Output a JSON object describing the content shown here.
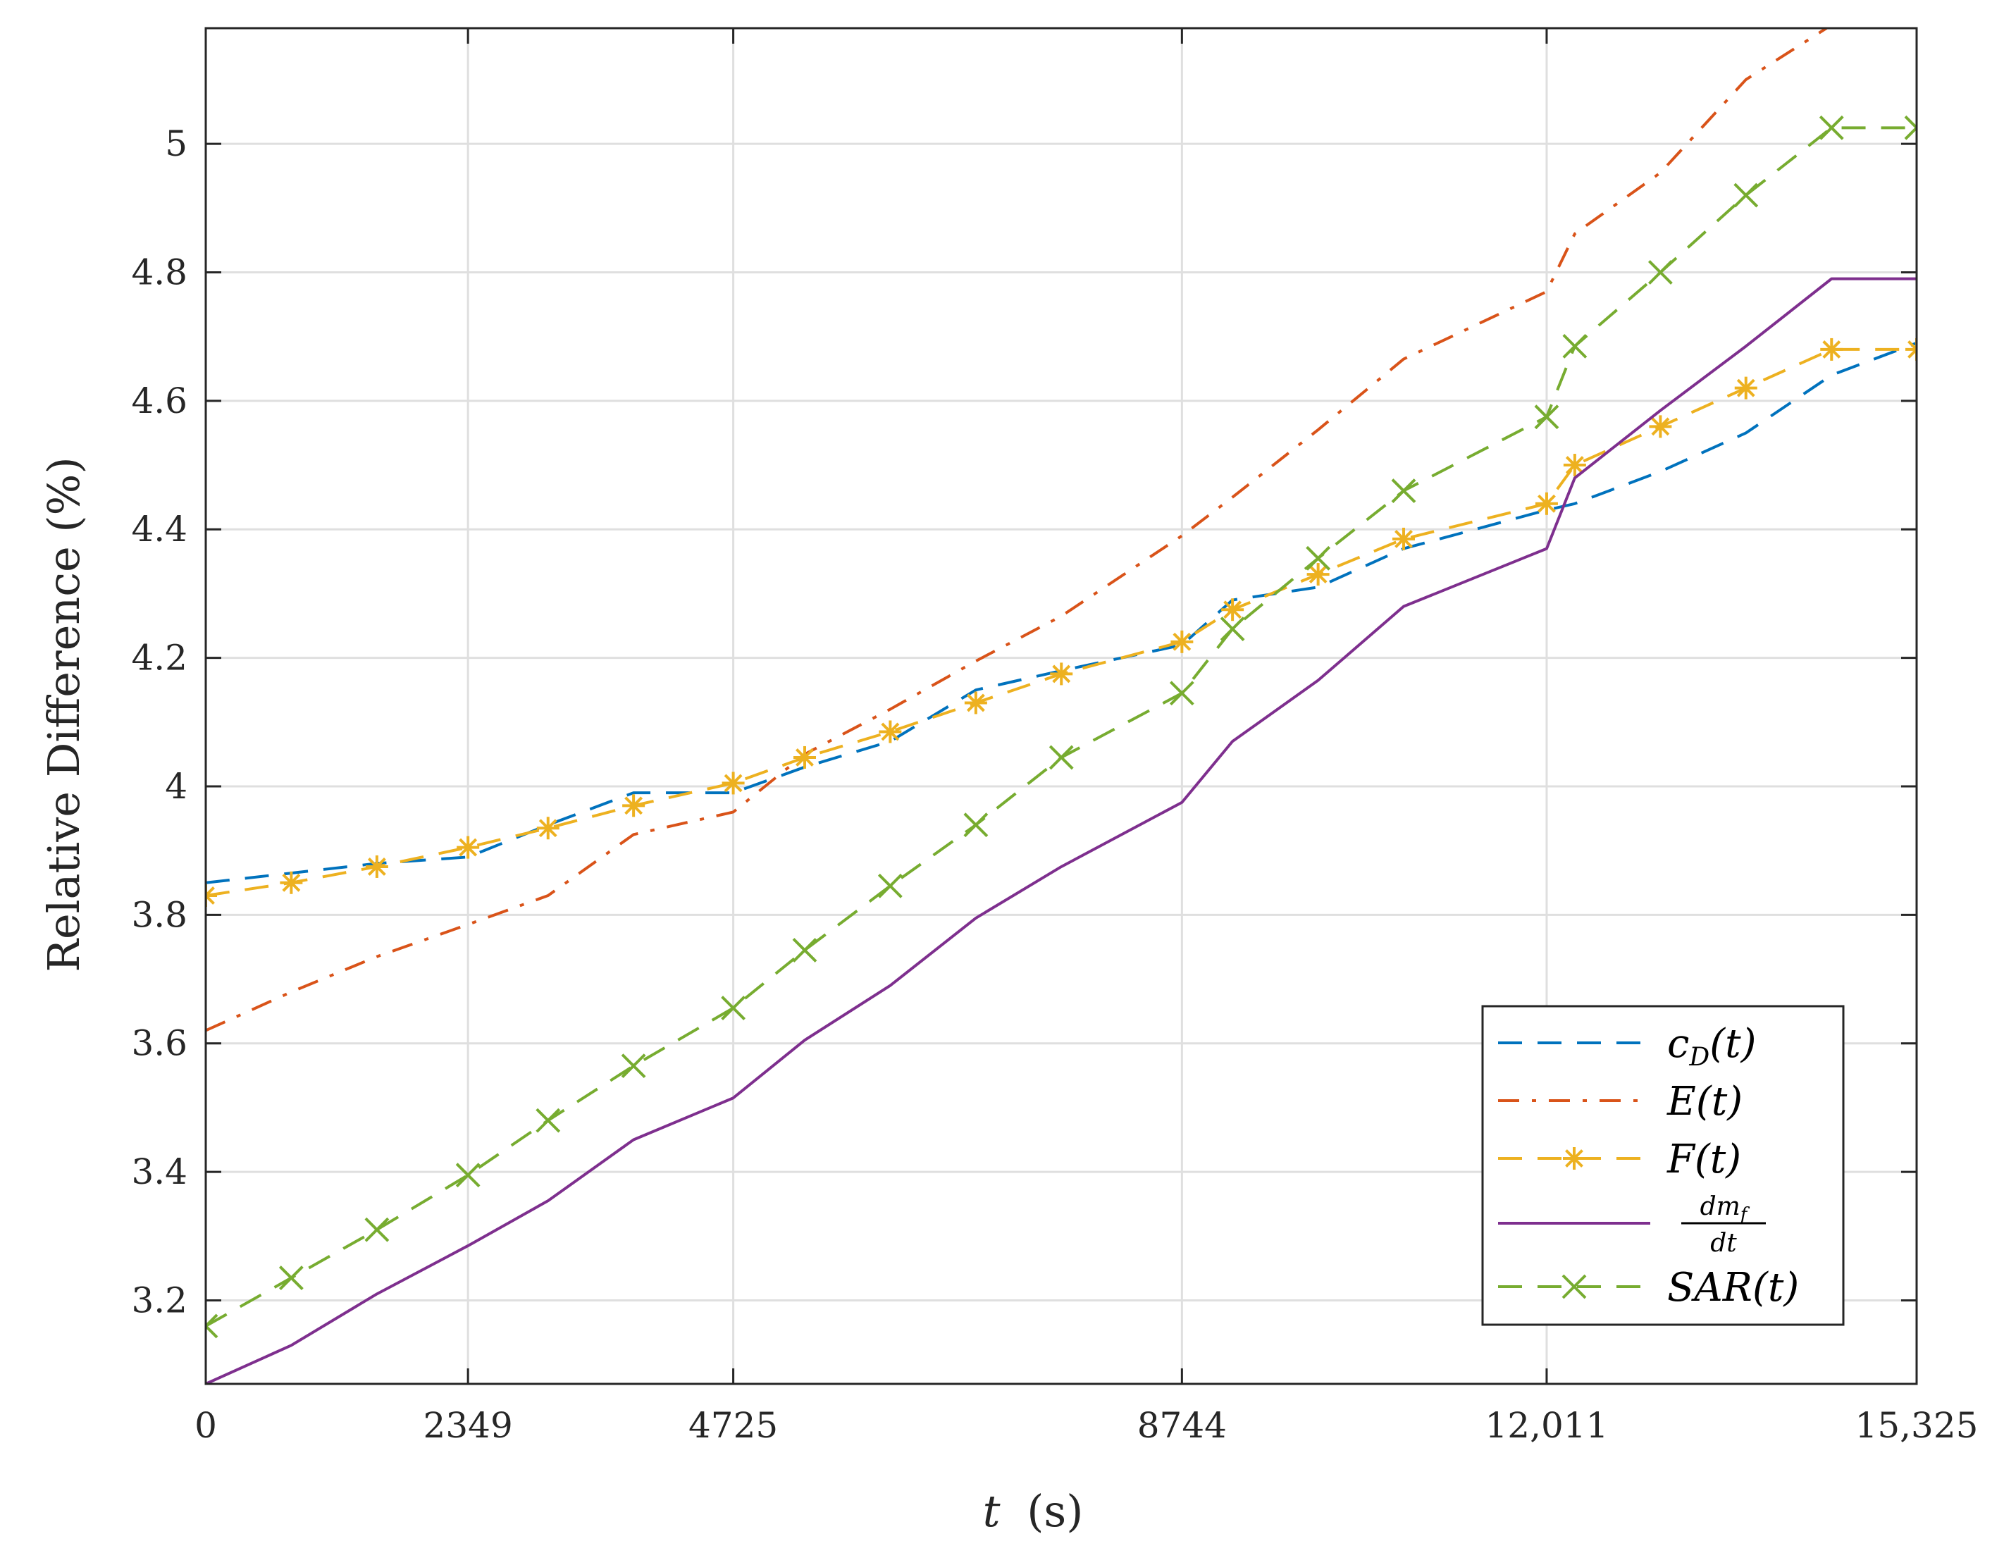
{
  "chart_data": {
    "type": "line",
    "xlabel_var": "t",
    "xlabel_unit": "(s)",
    "ylabel": "Relative Difference (%)",
    "xlim": [
      0,
      15325
    ],
    "ylim": [
      3.07,
      5.18
    ],
    "grid": true,
    "legend_position": "bottom-right",
    "x_ticks": [
      0,
      2349,
      4725,
      8744,
      12011,
      15325
    ],
    "x_tick_labels": [
      "0",
      "2349",
      "4725",
      "8744",
      "12,011",
      "15,325"
    ],
    "y_ticks": [
      3.2,
      3.4,
      3.6,
      3.8,
      4.0,
      4.2,
      4.4,
      4.6,
      4.8,
      5.0
    ],
    "y_tick_labels": [
      "3.2",
      "3.4",
      "3.6",
      "3.8",
      "4",
      "4.2",
      "4.4",
      "4.6",
      "4.8",
      "5"
    ],
    "x": [
      0,
      766,
      1533,
      2349,
      3066,
      3832,
      4725,
      5365,
      6131,
      6898,
      7664,
      8744,
      9197,
      9964,
      10730,
      12011,
      12263,
      13030,
      13796,
      14563,
      15325
    ],
    "series": [
      {
        "name": "c_D(t)",
        "legend_main": "c",
        "legend_sub": "D",
        "legend_tail": "(t)",
        "color": "#0072BD",
        "dash": "dash",
        "marker": "none",
        "values": [
          3.85,
          3.865,
          3.88,
          3.89,
          3.94,
          3.99,
          3.99,
          4.03,
          4.07,
          4.15,
          4.18,
          4.22,
          4.29,
          4.31,
          4.37,
          4.43,
          4.44,
          4.49,
          4.55,
          4.64,
          4.69
        ]
      },
      {
        "name": "E(t)",
        "legend_main": "E(t)",
        "color": "#D95319",
        "dash": "dashdot",
        "marker": "none",
        "values": [
          3.62,
          3.68,
          3.735,
          3.785,
          3.83,
          3.925,
          3.96,
          4.05,
          4.12,
          4.195,
          4.265,
          4.39,
          4.45,
          4.555,
          4.665,
          4.77,
          4.86,
          4.955,
          5.1,
          5.185,
          5.18
        ]
      },
      {
        "name": "F(t)",
        "legend_main": "F(t)",
        "color": "#EDB120",
        "dash": "dash",
        "marker": "star",
        "values": [
          3.83,
          3.85,
          3.875,
          3.905,
          3.935,
          3.97,
          4.005,
          4.045,
          4.085,
          4.13,
          4.175,
          4.225,
          4.275,
          4.33,
          4.385,
          4.44,
          4.5,
          4.56,
          4.62,
          4.68,
          4.68
        ]
      },
      {
        "name": "dm_f/dt",
        "legend_num": "dm",
        "legend_num_sub": "f",
        "legend_den": "dt",
        "color": "#7E2F8E",
        "dash": "solid",
        "marker": "none",
        "values": [
          3.07,
          3.13,
          3.21,
          3.285,
          3.355,
          3.45,
          3.515,
          3.605,
          3.69,
          3.795,
          3.875,
          3.975,
          4.07,
          4.165,
          4.28,
          4.37,
          4.48,
          4.585,
          4.685,
          4.79,
          4.79
        ]
      },
      {
        "name": "SAR(t)",
        "legend_main": "SAR(t)",
        "color": "#77AC30",
        "dash": "dash",
        "marker": "x",
        "values": [
          3.16,
          3.235,
          3.31,
          3.395,
          3.48,
          3.565,
          3.655,
          3.745,
          3.845,
          3.94,
          4.045,
          4.145,
          4.245,
          4.355,
          4.46,
          4.575,
          4.685,
          4.8,
          4.92,
          5.025,
          5.025
        ]
      }
    ]
  }
}
